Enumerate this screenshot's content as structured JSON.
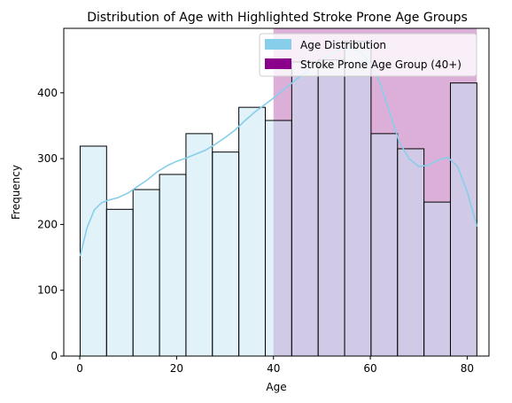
{
  "chart_data": {
    "type": "bar",
    "title": "Distribution of Age with Highlighted Stroke Prone Age Groups",
    "xlabel": "Age",
    "ylabel": "Frequency",
    "xlim": [
      -3.3,
      84.5
    ],
    "ylim": [
      0,
      498
    ],
    "xticks": [
      0,
      20,
      40,
      60,
      80
    ],
    "yticks": [
      0,
      100,
      200,
      300,
      400
    ],
    "grid": false,
    "legend_position": "top-right",
    "colors": {
      "bar_fill": "#c4e6f3",
      "bar_edge": "#000000",
      "kde_line": "#87ceeb",
      "highlight_fill": "#c57ac0",
      "legend_age": "#87ceeb",
      "legend_stroke": "#8b008b"
    },
    "bins": [
      {
        "start": 0.08,
        "end": 5.54,
        "count": 319
      },
      {
        "start": 5.54,
        "end": 11.0,
        "count": 223
      },
      {
        "start": 11.0,
        "end": 16.47,
        "count": 253
      },
      {
        "start": 16.47,
        "end": 21.93,
        "count": 276
      },
      {
        "start": 21.93,
        "end": 27.39,
        "count": 338
      },
      {
        "start": 27.39,
        "end": 32.85,
        "count": 310
      },
      {
        "start": 32.85,
        "end": 38.31,
        "count": 378
      },
      {
        "start": 38.31,
        "end": 43.77,
        "count": 358
      },
      {
        "start": 43.77,
        "end": 49.23,
        "count": 447
      },
      {
        "start": 49.23,
        "end": 54.69,
        "count": 450
      },
      {
        "start": 54.69,
        "end": 60.15,
        "count": 478
      },
      {
        "start": 60.15,
        "end": 65.62,
        "count": 338
      },
      {
        "start": 65.62,
        "end": 71.08,
        "count": 315
      },
      {
        "start": 71.08,
        "end": 76.54,
        "count": 234
      },
      {
        "start": 76.54,
        "end": 82.0,
        "count": 415
      }
    ],
    "highlight_range": [
      40,
      82
    ],
    "kde": {
      "x": [
        0.08,
        1.5,
        3,
        4.5,
        6,
        8,
        10,
        12,
        14,
        16,
        18,
        20,
        22,
        24,
        26,
        28,
        30,
        32,
        34,
        36,
        38,
        40,
        42,
        44,
        46,
        48,
        50,
        52,
        54,
        56,
        58,
        60,
        62,
        64,
        66,
        68,
        70,
        72,
        74,
        76,
        78,
        80,
        82
      ],
      "y": [
        152,
        195,
        222,
        233,
        237,
        241,
        248,
        258,
        268,
        280,
        289,
        296,
        301,
        307,
        313,
        322,
        332,
        343,
        357,
        370,
        381,
        392,
        404,
        416,
        428,
        440,
        450,
        460,
        467,
        468,
        462,
        445,
        415,
        370,
        325,
        300,
        288,
        290,
        298,
        302,
        288,
        250,
        197
      ]
    },
    "series": [
      {
        "name": "Age Distribution"
      },
      {
        "name": "Stroke Prone Age Group (40+)"
      }
    ]
  }
}
